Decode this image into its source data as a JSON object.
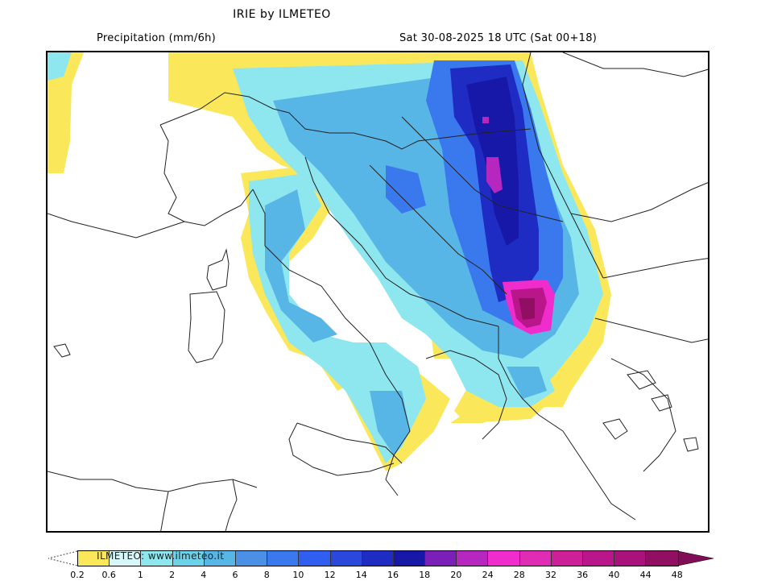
{
  "header": {
    "title": "IRIE by ILMETEO",
    "variable": "Precipitation (mm/6h)",
    "valid_time": "Sat 30-08-2025 18 UTC (Sat 00+18)"
  },
  "watermark": "ILMETEO:  www.ilmeteo.it",
  "map": {
    "region": "Central Mediterranean / Italy / Balkans",
    "features": {
      "max_core": "Albania / North Macedonia border (magenta-maroon, >40 mm/6h)",
      "secondary_core": "Serbia (magenta spot, ~20 mm/6h)",
      "band": "N-S band Hungary–Serbia–Albania (blue 10–18 mm/6h)",
      "italy": "Apennines & Adriatic coast light precip (1–8 mm/6h)",
      "dry": "France, Corsica, Sardinia, Tyrrhenian, Greece, Bulgaria, Romania"
    }
  },
  "colorbar": {
    "labels": [
      "0.2",
      "0.6",
      "1",
      "2",
      "4",
      "6",
      "8",
      "10",
      "12",
      "14",
      "16",
      "18",
      "20",
      "24",
      "28",
      "32",
      "36",
      "40",
      "44",
      "48"
    ],
    "colors": [
      "#fbe75a",
      "#d7f7fb",
      "#8ee6ef",
      "#6cd2ea",
      "#58b6e6",
      "#4a90e6",
      "#3a78ee",
      "#2f5ef0",
      "#2a48dc",
      "#1f2cc4",
      "#1818a8",
      "#7a1fb8",
      "#b627c0",
      "#f02ccc",
      "#e02cb4",
      "#cc1f98",
      "#b8168a",
      "#a8127a",
      "#900f62"
    ],
    "overflow_color": "#800d55"
  },
  "chart_data": {
    "type": "heatmap",
    "title": "IRIE by ILMETEO",
    "subtitle_left": "Precipitation (mm/6h)",
    "subtitle_right": "Sat 30-08-2025 18 UTC (Sat 00+18)",
    "legend": {
      "type": "colorbar",
      "position": "bottom",
      "ticks": [
        0.2,
        0.6,
        1,
        2,
        4,
        6,
        8,
        10,
        12,
        14,
        16,
        18,
        20,
        24,
        28,
        32,
        36,
        40,
        44,
        48
      ],
      "units": "mm/6h",
      "extends": "both"
    },
    "regions": [
      {
        "name": "Albania/North Macedonia",
        "value_range": [
          28,
          48
        ]
      },
      {
        "name": "Serbia central",
        "value_range": [
          16,
          24
        ]
      },
      {
        "name": "Hungary-Serbia band",
        "value_range": [
          8,
          18
        ]
      },
      {
        "name": "Bosnia/Croatia interior",
        "value_range": [
          2,
          10
        ]
      },
      {
        "name": "Northern Italy / Alps",
        "value_range": [
          0.2,
          4
        ]
      },
      {
        "name": "Apennines",
        "value_range": [
          1,
          8
        ]
      },
      {
        "name": "Calabria",
        "value_range": [
          1,
          8
        ]
      },
      {
        "name": "Ionian/Greece west coast",
        "value_range": [
          0.2,
          8
        ]
      },
      {
        "name": "Western France",
        "value_range": [
          0.2,
          0.6
        ]
      }
    ]
  }
}
